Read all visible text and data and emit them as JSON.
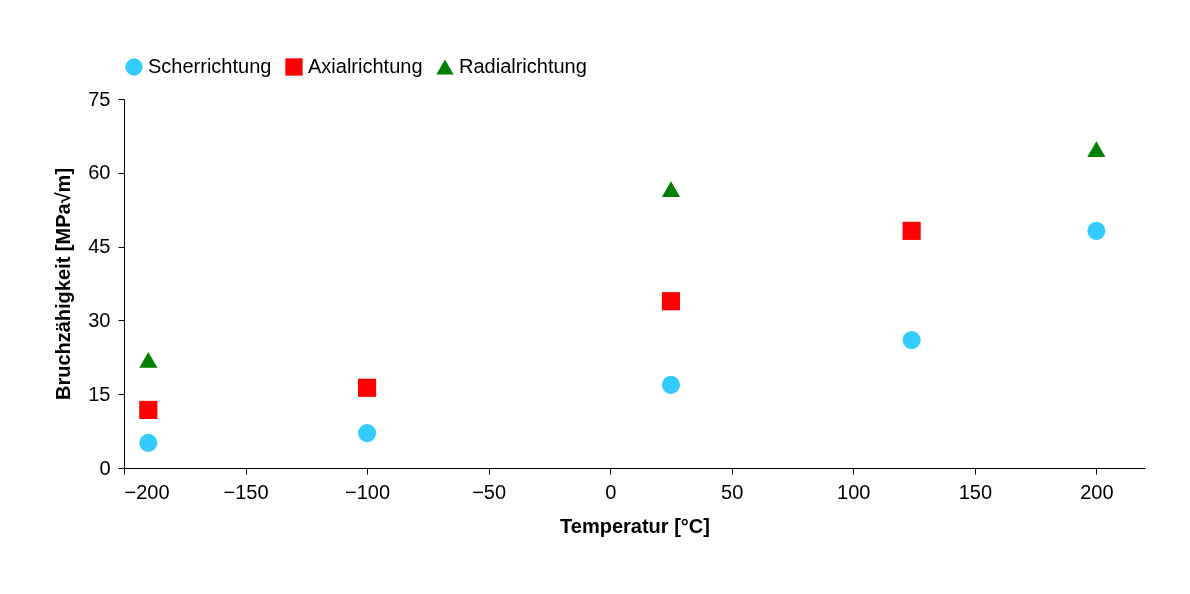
{
  "chart_data": {
    "type": "scatter",
    "xlabel": "Temperatur [°C]",
    "ylabel": "Bruchzähigkeit [MPa√m]",
    "xlim": [
      -200,
      220
    ],
    "xticks": [
      -200,
      -150,
      -100,
      -50,
      0,
      50,
      100,
      150,
      200
    ],
    "ylim": [
      0,
      75
    ],
    "yticks": [
      0,
      15,
      30,
      45,
      60,
      75
    ],
    "legend": "top",
    "series": [
      {
        "name": "Scherrichtung",
        "color": "#33ccff",
        "marker": "circle",
        "x": [
          -190,
          -100,
          25,
          124,
          200
        ],
        "values": [
          5.1,
          7.1,
          16.9,
          26,
          48.2
        ]
      },
      {
        "name": "Axialrichtung",
        "color": "#ff0000",
        "marker": "square",
        "x": [
          -190,
          -100,
          25,
          124
        ],
        "values": [
          11.8,
          16.3,
          33.9,
          48.2
        ]
      },
      {
        "name": "Radialrichtung",
        "color": "#008000",
        "marker": "triangle",
        "x": [
          -190,
          25,
          200
        ],
        "values": [
          22,
          56.7,
          64.8
        ]
      }
    ]
  }
}
